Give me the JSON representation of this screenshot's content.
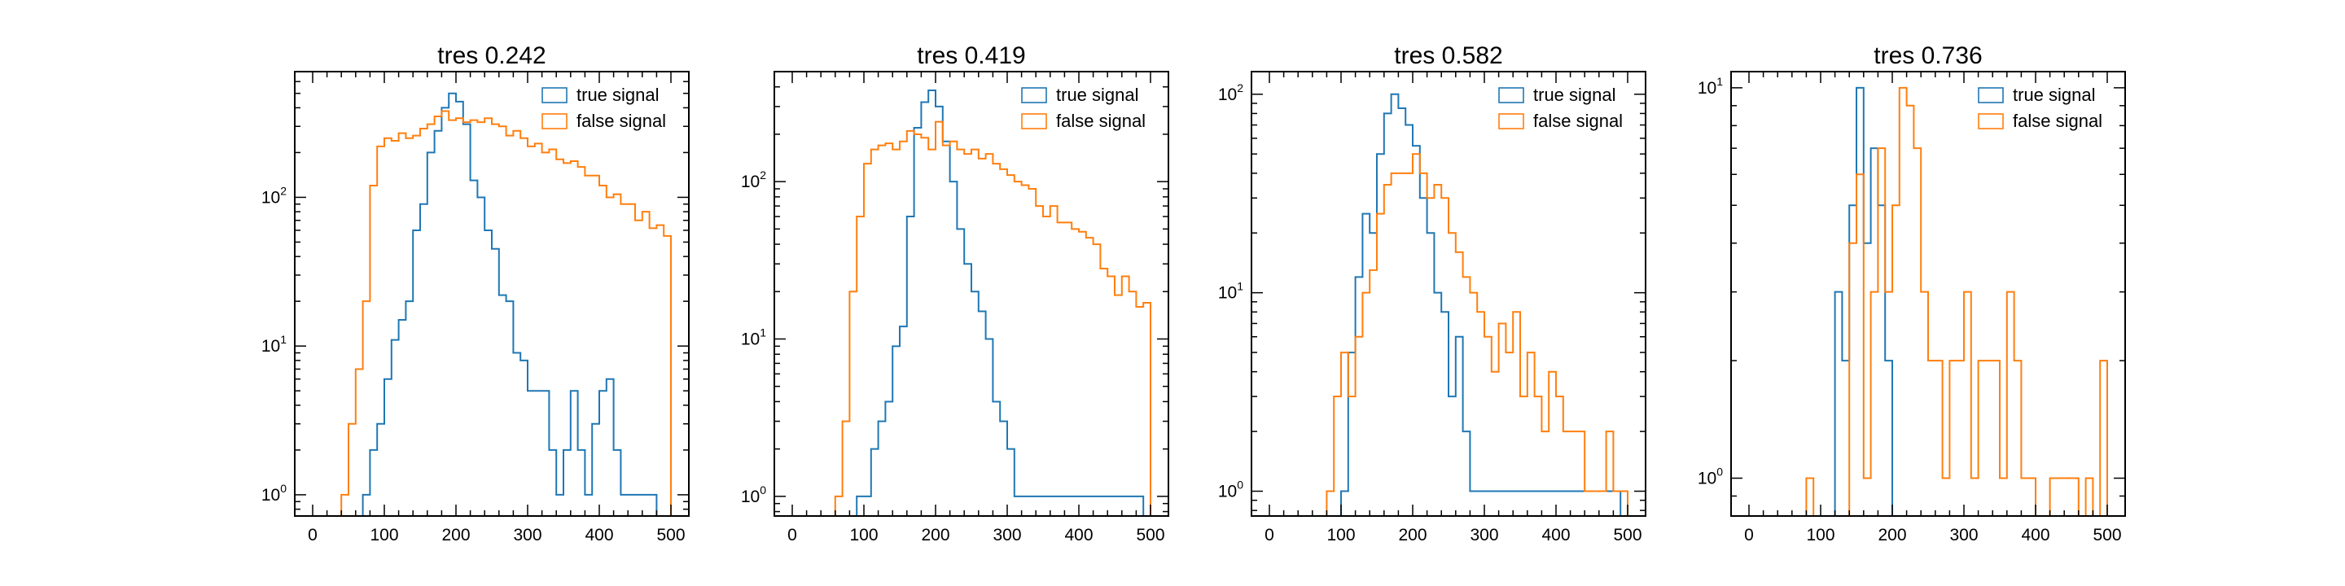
{
  "figure": {
    "description_colors": {
      "true_signal": "#1f77b4",
      "false_signal": "#ff7f0e"
    }
  },
  "chart_data": [
    {
      "type": "histogram",
      "title": "tres 0.242",
      "yscale": "log",
      "xlim": [
        -25,
        525
      ],
      "ylim": [
        0.72,
        700
      ],
      "x_ticks": [
        0,
        100,
        200,
        300,
        400,
        500
      ],
      "y_ticks": [
        {
          "base": "10",
          "exp": "0",
          "value": 1
        },
        {
          "base": "10",
          "exp": "1",
          "value": 10
        },
        {
          "base": "10",
          "exp": "2",
          "value": 100
        }
      ],
      "bin_edges_start": 0,
      "bin_width": 10,
      "legend_position": "top-right",
      "series": [
        {
          "name": "true signal",
          "color": "#1f77b4",
          "values": [
            0,
            0,
            0,
            0,
            0,
            0,
            0,
            1,
            2,
            3,
            6,
            11,
            15,
            20,
            60,
            90,
            200,
            280,
            400,
            500,
            440,
            310,
            130,
            100,
            60,
            45,
            22,
            20,
            9,
            8,
            5,
            5,
            5,
            2,
            1,
            2,
            5,
            2,
            1,
            3,
            5,
            6,
            2,
            1,
            1,
            1,
            1,
            1,
            0,
            0
          ]
        },
        {
          "name": "false signal",
          "color": "#ff7f0e",
          "values": [
            0,
            0,
            0,
            0,
            1,
            3,
            7,
            20,
            120,
            220,
            250,
            240,
            270,
            250,
            260,
            290,
            310,
            350,
            380,
            330,
            340,
            320,
            330,
            320,
            340,
            310,
            300,
            260,
            280,
            250,
            220,
            230,
            200,
            210,
            180,
            170,
            175,
            160,
            140,
            140,
            120,
            100,
            105,
            90,
            90,
            70,
            80,
            62,
            65,
            55
          ]
        }
      ],
      "legend_entries": [
        "true signal",
        "false signal"
      ]
    },
    {
      "type": "histogram",
      "title": "tres 0.419",
      "yscale": "log",
      "xlim": [
        -25,
        525
      ],
      "ylim": [
        0.75,
        500
      ],
      "x_ticks": [
        0,
        100,
        200,
        300,
        400,
        500
      ],
      "y_ticks": [
        {
          "base": "10",
          "exp": "0",
          "value": 1
        },
        {
          "base": "10",
          "exp": "1",
          "value": 10
        },
        {
          "base": "10",
          "exp": "2",
          "value": 100
        }
      ],
      "bin_edges_start": 0,
      "bin_width": 10,
      "legend_position": "top-right",
      "series": [
        {
          "name": "true signal",
          "color": "#1f77b4",
          "values": [
            0,
            0,
            0,
            0,
            0,
            0,
            0,
            0,
            0,
            1,
            1,
            2,
            3,
            4,
            9,
            12,
            60,
            220,
            320,
            380,
            300,
            180,
            100,
            50,
            30,
            20,
            15,
            10,
            4,
            3,
            2,
            1,
            1,
            1,
            1,
            1,
            1,
            1,
            1,
            1,
            1,
            1,
            1,
            1,
            1,
            1,
            1,
            1,
            1,
            0
          ]
        },
        {
          "name": "false signal",
          "color": "#ff7f0e",
          "values": [
            0,
            0,
            0,
            0,
            0,
            0,
            1,
            3,
            20,
            60,
            130,
            160,
            170,
            175,
            160,
            180,
            210,
            200,
            190,
            160,
            240,
            170,
            180,
            160,
            150,
            160,
            140,
            150,
            130,
            120,
            110,
            100,
            95,
            90,
            70,
            60,
            70,
            55,
            55,
            50,
            48,
            44,
            40,
            28,
            25,
            19,
            25,
            20,
            16,
            17
          ]
        }
      ],
      "legend_entries": [
        "true signal",
        "false signal"
      ]
    },
    {
      "type": "histogram",
      "title": "tres 0.582",
      "yscale": "log",
      "xlim": [
        -25,
        525
      ],
      "ylim": [
        0.75,
        130
      ],
      "x_ticks": [
        0,
        100,
        200,
        300,
        400,
        500
      ],
      "y_ticks": [
        {
          "base": "10",
          "exp": "0",
          "value": 1
        },
        {
          "base": "10",
          "exp": "1",
          "value": 10
        },
        {
          "base": "10",
          "exp": "2",
          "value": 100
        }
      ],
      "bin_edges_start": 0,
      "bin_width": 10,
      "legend_position": "top-right",
      "series": [
        {
          "name": "true signal",
          "color": "#1f77b4",
          "values": [
            0,
            0,
            0,
            0,
            0,
            0,
            0,
            0,
            0,
            0,
            1,
            5,
            12,
            25,
            20,
            50,
            80,
            100,
            85,
            70,
            55,
            30,
            20,
            10,
            8,
            3,
            6,
            2,
            1,
            1,
            1,
            1,
            1,
            1,
            1,
            1,
            1,
            1,
            1,
            1,
            1,
            1,
            1,
            1,
            1,
            1,
            1,
            1,
            1,
            0
          ]
        },
        {
          "name": "false signal",
          "color": "#ff7f0e",
          "values": [
            0,
            0,
            0,
            0,
            0,
            0,
            0,
            0,
            1,
            3,
            5,
            3,
            6,
            10,
            13,
            25,
            35,
            40,
            40,
            40,
            50,
            40,
            30,
            35,
            30,
            20,
            16,
            12,
            10,
            8,
            6,
            4,
            7,
            5,
            8,
            3,
            5,
            3,
            2,
            4,
            3,
            2,
            2,
            2,
            1,
            1,
            1,
            2,
            1,
            1
          ]
        }
      ],
      "legend_entries": [
        "true signal",
        "false signal"
      ]
    },
    {
      "type": "histogram",
      "title": "tres 0.736",
      "yscale": "log",
      "xlim": [
        -25,
        525
      ],
      "ylim": [
        0.8,
        11
      ],
      "x_ticks": [
        0,
        100,
        200,
        300,
        400,
        500
      ],
      "y_ticks": [
        {
          "base": "10",
          "exp": "0",
          "value": 1
        },
        {
          "base": "10",
          "exp": "1",
          "value": 10
        }
      ],
      "bin_edges_start": 0,
      "bin_width": 10,
      "legend_position": "top-right",
      "series": [
        {
          "name": "true signal",
          "color": "#1f77b4",
          "values": [
            0,
            0,
            0,
            0,
            0,
            0,
            0,
            0,
            0,
            0,
            0,
            0,
            3,
            2,
            5,
            10,
            4,
            7,
            5,
            2,
            0,
            0,
            0,
            0,
            0,
            0,
            0,
            0,
            0,
            0,
            0,
            0,
            0,
            0,
            0,
            0,
            0,
            0,
            0,
            0,
            0,
            0,
            0,
            0,
            0,
            0,
            0,
            0,
            0,
            0
          ]
        },
        {
          "name": "false signal",
          "color": "#ff7f0e",
          "values": [
            0,
            0,
            0,
            0,
            0,
            0,
            0,
            0,
            1,
            0,
            0,
            0,
            0,
            0,
            4,
            6,
            1,
            3,
            7,
            3,
            5,
            10,
            9,
            7,
            3,
            2,
            2,
            1,
            2,
            2,
            3,
            1,
            2,
            2,
            2,
            1,
            3,
            2,
            1,
            1,
            0,
            0,
            1,
            1,
            1,
            1,
            0,
            1,
            0,
            2
          ]
        }
      ],
      "legend_entries": [
        "true signal",
        "false signal"
      ]
    }
  ]
}
